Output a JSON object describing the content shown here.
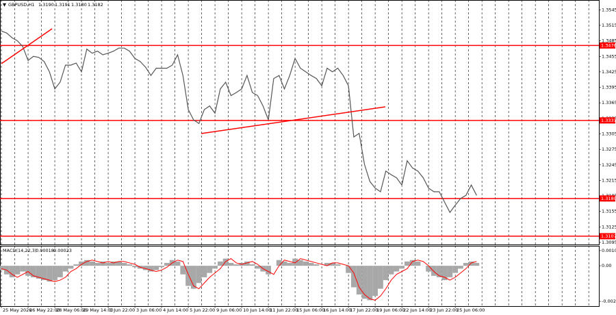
{
  "chart_data": [
    {
      "type": "line",
      "title": "GBPUSD,H1",
      "quote": [
        "1.3190",
        "1.3191",
        "1.3180",
        "1.3182"
      ],
      "x": [
        0,
        1,
        2,
        3,
        4,
        5,
        6,
        7,
        8,
        9,
        10,
        11,
        12,
        13,
        14,
        15,
        16,
        17,
        18,
        19,
        20,
        21,
        22,
        23,
        24,
        25,
        26,
        27,
        28,
        29,
        30,
        31,
        32,
        33,
        34,
        35,
        36,
        37,
        38,
        39,
        40,
        41,
        42,
        43,
        44,
        45,
        46,
        47,
        48,
        49,
        50,
        51,
        52,
        53,
        54,
        55,
        56,
        57,
        58,
        59,
        60,
        61,
        62,
        63,
        64,
        65,
        66,
        67,
        68,
        69,
        70,
        71,
        72,
        73,
        74,
        75,
        76,
        77,
        78,
        79,
        80,
        81,
        82,
        83,
        84,
        85,
        86,
        87,
        88,
        89
      ],
      "series": [
        {
          "name": "GBPUSD,H1",
          "color": "#555555",
          "values": [
            1.3504,
            1.35,
            1.3491,
            1.3485,
            1.3474,
            1.3447,
            1.3455,
            1.3453,
            1.3445,
            1.3425,
            1.3392,
            1.3405,
            1.3438,
            1.3438,
            1.3442,
            1.3425,
            1.3469,
            1.3461,
            1.3465,
            1.3458,
            1.3461,
            1.3465,
            1.3471,
            1.3471,
            1.3465,
            1.3451,
            1.3445,
            1.3434,
            1.3418,
            1.3432,
            1.3432,
            1.3432,
            1.3438,
            1.3458,
            1.3418,
            1.3352,
            1.3332,
            1.3325,
            1.3352,
            1.3359,
            1.3345,
            1.3392,
            1.3405,
            1.3379,
            1.3385,
            1.3392,
            1.3418,
            1.3385,
            1.3379,
            1.3359,
            1.3332,
            1.3412,
            1.3418,
            1.3392,
            1.3418,
            1.3451,
            1.3432,
            1.3425,
            1.3418,
            1.3412,
            1.3398,
            1.3432,
            1.3425,
            1.3432,
            1.3418,
            1.3398,
            1.3299,
            1.3306,
            1.3246,
            1.3213,
            1.32,
            1.3193,
            1.3233,
            1.3226,
            1.322,
            1.3206,
            1.3253,
            1.3239,
            1.3233,
            1.322,
            1.32,
            1.3193,
            1.3193,
            1.3173,
            1.3153,
            1.3167,
            1.318,
            1.3186,
            1.3206,
            1.3186
          ]
        }
      ],
      "xlim": [
        -0.26,
        111.9
      ],
      "xticks": [
        {
          "value": 0,
          "label": "25 May 2026"
        },
        {
          "value": 5,
          "label": "26 May 22:00"
        },
        {
          "value": 10,
          "label": "28 May 06:00"
        },
        {
          "value": 15,
          "label": "29 May 14:00"
        },
        {
          "value": 20,
          "label": "1 Jun 22:00"
        },
        {
          "value": 25,
          "label": "3 Jun 06:00"
        },
        {
          "value": 30,
          "label": "4 Jun 14:00"
        },
        {
          "value": 35,
          "label": "5 Jun 22:00"
        },
        {
          "value": 40,
          "label": "9 Jun 06:00"
        },
        {
          "value": 45,
          "label": "10 Jun 14:00"
        },
        {
          "value": 50,
          "label": "11 Jun 22:00"
        },
        {
          "value": 55,
          "label": "15 Jun 06:00"
        },
        {
          "value": 60,
          "label": "16 Jun 14:00"
        },
        {
          "value": 65,
          "label": "17 Jun 22:00"
        },
        {
          "value": 70,
          "label": "19 Jun 06:00"
        },
        {
          "value": 75,
          "label": "22 Jun 14:00"
        },
        {
          "value": 80,
          "label": "23 Jun 22:00"
        },
        {
          "value": 85,
          "label": "25 Jun 06:00"
        }
      ],
      "ylim": [
        1.3091,
        1.3564
      ],
      "yticks": [
        1.3545,
        1.3515,
        1.3485,
        1.3455,
        1.3425,
        1.3395,
        1.3365,
        1.3335,
        1.3305,
        1.3275,
        1.3245,
        1.3215,
        1.3185,
        1.3155,
        1.3125,
        1.3095
      ],
      "levels": [
        1.3476,
        1.3331,
        {
          "value": 1.318,
          "label": "1.3180"
        },
        1.3107
      ],
      "level_color": "#ff0000",
      "grid": true
    },
    {
      "type": "bar",
      "title": "MACD(14,22,3)",
      "quote": [
        "0.00018",
        "0.00023"
      ],
      "series": [
        {
          "name": "MACD",
          "color": "#a8a8a8",
          "values": [
            -0.0003,
            -0.0006,
            -0.0008,
            -0.0006,
            -0.0004,
            -0.0007,
            -0.0008,
            -0.0009,
            -0.001,
            -0.0011,
            -0.001,
            -0.0008,
            -0.0004,
            -0.0002,
            0.0001,
            0.0003,
            0.0004,
            0.0003,
            0.0002,
            0.0003,
            0.0002,
            0.0003,
            0.0003,
            0.0002,
            0.0001,
            -0.0001,
            -0.0002,
            -0.0003,
            -0.0004,
            -0.0003,
            -0.0001,
            0.0002,
            0.0004,
            0.0003,
            -0.0006,
            -0.0014,
            -0.0016,
            -0.0012,
            -0.0008,
            -0.0005,
            -0.0002,
            0.0003,
            0.0005,
            0.0002,
            0.0001,
            0.0002,
            0.0003,
            0.0001,
            -0.0002,
            -0.0004,
            -0.0006,
            0.0,
            0.0004,
            0.0003,
            0.0002,
            0.0005,
            0.0004,
            0.0003,
            0.0002,
            0.0001,
            0.0,
            0.0002,
            0.0002,
            0.0001,
            0.0,
            -0.0005,
            -0.0015,
            -0.002,
            -0.0023,
            -0.0024,
            -0.0021,
            -0.0016,
            -0.001,
            -0.0006,
            -0.0004,
            -0.0002,
            0.0003,
            0.0004,
            0.0003,
            0.0,
            -0.0004,
            -0.0007,
            -0.0008,
            -0.001,
            -0.0008,
            -0.0005,
            -0.0002,
            0.0002,
            0.0003,
            0.0002
          ]
        },
        {
          "name": "Signal",
          "color": "#ff0000",
          "values": [
            -0.0002,
            -0.0003,
            -0.0006,
            -0.0008,
            -0.0006,
            -0.0004,
            -0.0007,
            -0.0008,
            -0.0009,
            -0.001,
            -0.0011,
            -0.001,
            -0.0008,
            -0.0004,
            -0.0002,
            0.0001,
            0.0003,
            0.0004,
            0.0003,
            0.0002,
            0.0003,
            0.0002,
            0.0003,
            0.0003,
            0.0002,
            0.0001,
            -0.0001,
            -0.0002,
            -0.0003,
            -0.0004,
            -0.0003,
            -0.0001,
            0.0002,
            0.0004,
            0.0003,
            -0.0006,
            -0.0014,
            -0.0016,
            -0.0012,
            -0.0008,
            -0.0005,
            -0.0002,
            0.0003,
            0.0005,
            0.0002,
            0.0001,
            0.0002,
            0.0003,
            0.0001,
            -0.0002,
            -0.0004,
            -0.0006,
            0.0,
            0.0004,
            0.0003,
            0.0002,
            0.0005,
            0.0004,
            0.0003,
            0.0002,
            0.0001,
            0.0,
            0.0002,
            0.0002,
            0.0001,
            0.0,
            -0.0005,
            -0.0015,
            -0.002,
            -0.0023,
            -0.0024,
            -0.0021,
            -0.0016,
            -0.001,
            -0.0006,
            -0.0004,
            -0.0002,
            0.0003,
            0.0004,
            0.0003,
            0.0,
            -0.0004,
            -0.0007,
            -0.0008,
            -0.001,
            -0.0008,
            -0.0005,
            -0.0002,
            0.0002,
            0.0003
          ]
        }
      ],
      "ylim": [
        -0.00281,
        0.00139
      ],
      "yticks": [
        0.00106,
        {
          "value": 0,
          "label": "0.00"
        },
        -0.00248
      ]
    }
  ]
}
